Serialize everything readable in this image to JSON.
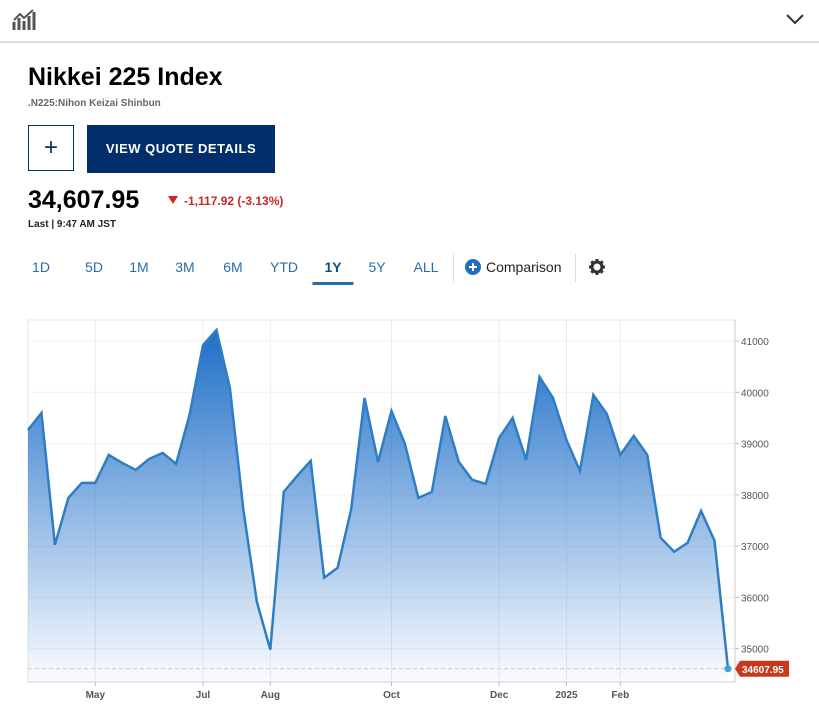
{
  "header": {
    "title": "Nikkei 225 Index",
    "subtitle": ".N225:Nihon Keizai Shinbun",
    "add_button": "+",
    "quote_button": "VIEW QUOTE DETAILS",
    "price": "34,607.95",
    "change": "-1,117.92 (-3.13%)",
    "last": "Last | 9:47 AM JST"
  },
  "tabs": [
    "1D",
    "5D",
    "1M",
    "3M",
    "6M",
    "YTD",
    "1Y",
    "5Y",
    "ALL"
  ],
  "active_tab": "1Y",
  "comparison": "Comparison",
  "chart_data": {
    "type": "area",
    "color": "#2f7ec4",
    "grid": true,
    "categories": [
      null,
      null,
      null,
      null,
      null,
      "May",
      null,
      null,
      null,
      null,
      null,
      null,
      null,
      "Jul",
      null,
      null,
      null,
      null,
      "Aug",
      null,
      null,
      null,
      null,
      null,
      null,
      null,
      null,
      "Oct",
      null,
      null,
      null,
      null,
      null,
      null,
      null,
      "Dec",
      null,
      null,
      null,
      null,
      "2025",
      null,
      null,
      null,
      "Feb",
      null,
      null,
      null,
      null,
      null,
      null,
      null,
      null
    ],
    "values": [
      39266,
      39597,
      37026,
      37941,
      38234,
      38234,
      38779,
      38623,
      38487,
      38701,
      38818,
      38604,
      39558,
      40922,
      41214,
      40084,
      37708,
      35915,
      34980,
      38058,
      38370,
      38662,
      36383,
      36578,
      37708,
      39890,
      38643,
      39636,
      38993,
      37941,
      38058,
      39539,
      38643,
      38292,
      38214,
      39110,
      39500,
      38682,
      40299,
      39890,
      39071,
      38467,
      39948,
      39578,
      38779,
      39149,
      38779,
      37162,
      36890,
      37065,
      37688,
      37104,
      34607.95
    ],
    "ylim": [
      34350,
      41410
    ],
    "yticks": [
      35000,
      36000,
      37000,
      38000,
      39000,
      40000,
      41000
    ]
  }
}
